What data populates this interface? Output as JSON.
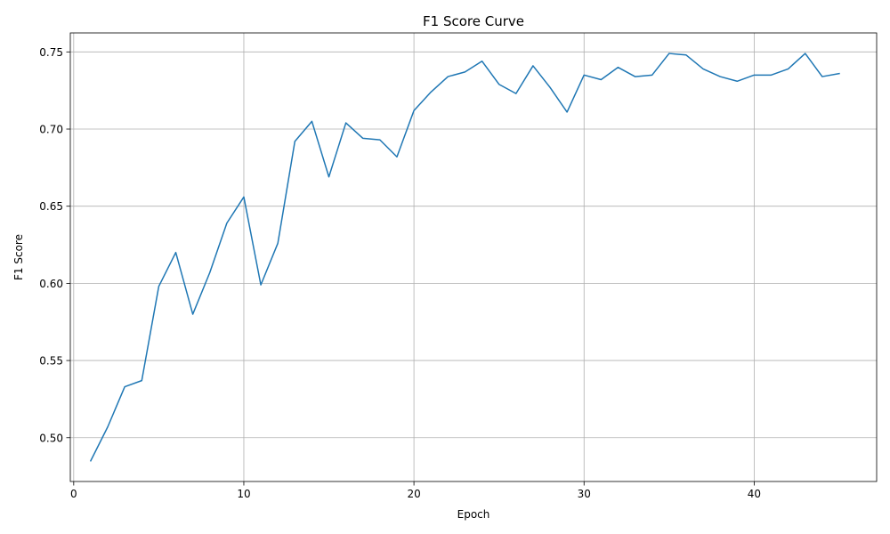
{
  "chart_data": {
    "type": "line",
    "title": "F1 Score Curve",
    "xlabel": "Epoch",
    "ylabel": "F1 Score",
    "xlim": [
      -0.2,
      47.2
    ],
    "ylim": [
      0.4716,
      0.7623
    ],
    "xticks": [
      0,
      10,
      20,
      30,
      40
    ],
    "yticks": [
      0.5,
      0.55,
      0.6,
      0.65,
      0.7,
      0.75
    ],
    "xtick_labels": [
      "0",
      "10",
      "20",
      "30",
      "40"
    ],
    "ytick_labels": [
      "0.50",
      "0.55",
      "0.60",
      "0.65",
      "0.70",
      "0.75"
    ],
    "grid": true,
    "color": "#1f77b4",
    "series": [
      {
        "x": [
          1,
          2,
          3,
          4,
          5,
          6,
          7,
          8,
          9,
          10,
          11,
          12,
          13,
          14,
          15,
          16,
          17,
          18,
          19,
          20,
          21,
          22,
          23,
          24,
          25,
          26,
          27,
          28,
          29,
          30,
          31,
          32,
          33,
          34,
          35,
          36,
          37,
          38,
          39,
          40,
          41,
          42,
          43,
          44,
          45
        ],
        "values": [
          0.485,
          0.507,
          0.533,
          0.537,
          0.598,
          0.62,
          0.58,
          0.607,
          0.639,
          0.656,
          0.599,
          0.626,
          0.692,
          0.705,
          0.669,
          0.704,
          0.694,
          0.693,
          0.682,
          0.712,
          0.724,
          0.734,
          0.737,
          0.744,
          0.729,
          0.723,
          0.741,
          0.727,
          0.711,
          0.735,
          0.732,
          0.74,
          0.734,
          0.735,
          0.749,
          0.748,
          0.739,
          0.734,
          0.731,
          0.735,
          0.735,
          0.739,
          0.749,
          0.734,
          0.736
        ]
      }
    ]
  }
}
